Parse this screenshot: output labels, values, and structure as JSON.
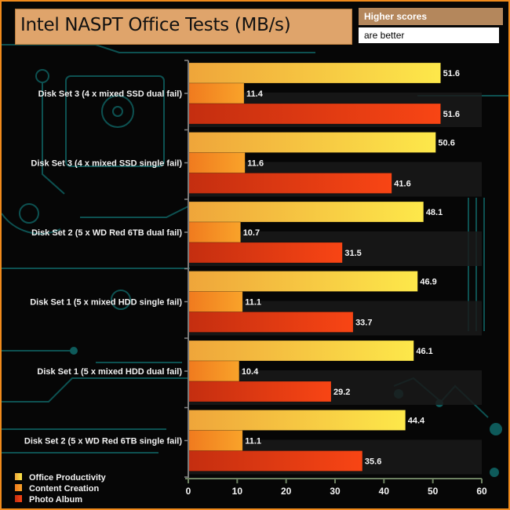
{
  "header": {
    "title": "Intel NASPT Office Tests (MB/s)",
    "note_line1": "Higher scores",
    "note_line2": "are better"
  },
  "colors": {
    "frame": "#f08a1c",
    "series": {
      "Office Productivity": [
        "#efa53a",
        "#fde84a"
      ],
      "Content Creation": [
        "#f07a1e",
        "#f9a32a"
      ],
      "Photo Album": [
        "#c42e10",
        "#f84514"
      ]
    }
  },
  "chart_data": {
    "type": "bar",
    "orientation": "horizontal",
    "title": "Intel NASPT Office Tests (MB/s)",
    "xlabel": "",
    "ylabel": "",
    "xlim": [
      0,
      60
    ],
    "xticks": [
      0,
      10,
      20,
      30,
      40,
      50,
      60
    ],
    "grid": false,
    "legend_position": "bottom-left",
    "categories": [
      "Disk Set 3 (4 x mixed SSD dual fail)",
      "Disk Set 3 (4 x mixed SSD single fail)",
      "Disk Set 2 (5 x WD Red 6TB dual fail)",
      "Disk Set 1 (5 x mixed HDD single fail)",
      "Disk Set 1 (5 x mixed HDD dual fail)",
      "Disk Set 2 (5 x WD Red 6TB single fail)"
    ],
    "series": [
      {
        "name": "Office Productivity",
        "values": [
          51.6,
          50.6,
          48.1,
          46.9,
          46.1,
          44.4
        ]
      },
      {
        "name": "Content Creation",
        "values": [
          11.4,
          11.6,
          10.7,
          11.1,
          10.4,
          11.1
        ]
      },
      {
        "name": "Photo Album",
        "values": [
          51.6,
          41.6,
          31.5,
          33.7,
          29.2,
          35.6
        ]
      }
    ]
  }
}
